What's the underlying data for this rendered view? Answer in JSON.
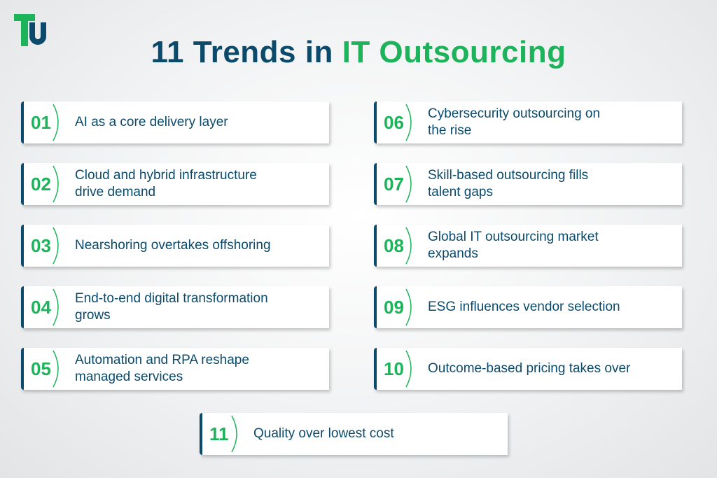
{
  "header": {
    "title_part1": "11 Trends in",
    "title_part2": "IT Outsourcing"
  },
  "items": [
    {
      "number": "01",
      "lines": [
        "AI as a core delivery layer"
      ]
    },
    {
      "number": "02",
      "lines": [
        "Cloud and hybrid infrastructure",
        "drive demand"
      ]
    },
    {
      "number": "03",
      "lines": [
        "Nearshoring overtakes offshoring"
      ]
    },
    {
      "number": "04",
      "lines": [
        "End-to-end digital transformation",
        "grows"
      ]
    },
    {
      "number": "05",
      "lines": [
        "Automation and RPA reshape",
        "managed services"
      ]
    },
    {
      "number": "06",
      "lines": [
        "Cybersecurity outsourcing on",
        "the rise"
      ]
    },
    {
      "number": "07",
      "lines": [
        "Skill-based outsourcing fills",
        "talent gaps"
      ]
    },
    {
      "number": "08",
      "lines": [
        "Global IT outsourcing market",
        "expands"
      ]
    },
    {
      "number": "09",
      "lines": [
        "ESG influences vendor selection"
      ]
    },
    {
      "number": "10",
      "lines": [
        "Outcome-based pricing takes over"
      ]
    },
    {
      "number": "11",
      "lines": [
        "Quality over lowest cost"
      ]
    }
  ]
}
